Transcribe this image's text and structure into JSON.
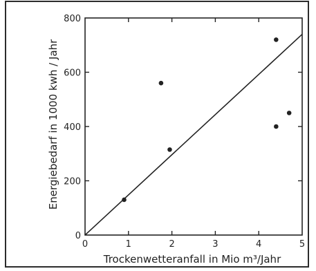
{
  "chart_data": {
    "type": "scatter",
    "title": "",
    "xlabel": "Trockenwetteranfall in Mio m³/Jahr",
    "ylabel": "Energiebedarf in 1000 kwh / Jahr",
    "xlim": [
      0,
      5
    ],
    "ylim": [
      0,
      800
    ],
    "x_ticks": [
      "0",
      "1",
      "2",
      "3",
      "4",
      "5"
    ],
    "y_ticks": [
      "0",
      "200",
      "400",
      "600",
      "800"
    ],
    "grid": false,
    "legend": "none",
    "series": [
      {
        "points": [
          {
            "x": 0.9,
            "y": 130
          },
          {
            "x": 1.75,
            "y": 560
          },
          {
            "x": 1.95,
            "y": 315
          },
          {
            "x": 4.4,
            "y": 720
          },
          {
            "x": 4.4,
            "y": 400
          },
          {
            "x": 4.7,
            "y": 450
          }
        ]
      }
    ],
    "trend_line": {
      "x": [
        0,
        5
      ],
      "y": [
        0,
        740
      ]
    },
    "colors": {
      "ink": "#222222",
      "frame": "#2b2b2b"
    }
  }
}
